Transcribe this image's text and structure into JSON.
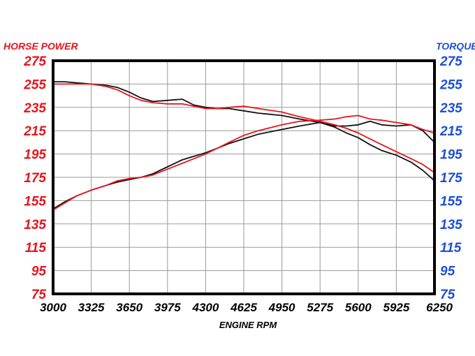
{
  "chart_data": {
    "type": "line",
    "title": "",
    "xlabel": "ENGINE RPM",
    "ylabel_left": "HORSE POWER",
    "ylabel_right": "TORQUE",
    "xlim": [
      3000,
      6250
    ],
    "ylim_left": [
      75,
      275
    ],
    "ylim_right": [
      75,
      275
    ],
    "x_ticks": [
      "3000",
      "3325",
      "3650",
      "3975",
      "4300",
      "4625",
      "4950",
      "5275",
      "5600",
      "5925",
      "6250"
    ],
    "y_ticks_left": [
      "275",
      "255",
      "235",
      "215",
      "195",
      "175",
      "155",
      "135",
      "115",
      "95",
      "75"
    ],
    "y_ticks_right": [
      "275",
      "255",
      "235",
      "215",
      "195",
      "175",
      "155",
      "135",
      "115",
      "95",
      "75"
    ],
    "grid": true,
    "colors": {
      "left_axis": "#e8141c",
      "right_axis": "#1e4fd6",
      "black_series": "#111111",
      "red_series": "#e8141c",
      "grid": "#9a9a9a"
    },
    "series": [
      {
        "color": "black",
        "kind": "torque",
        "x": [
          3000,
          3100,
          3200,
          3325,
          3450,
          3550,
          3650,
          3750,
          3850,
          3975,
          4100,
          4200,
          4300,
          4400,
          4500,
          4625,
          4750,
          4950,
          5100,
          5275,
          5400,
          5500,
          5600,
          5700,
          5800,
          5925,
          6050,
          6150,
          6250
        ],
        "y": [
          257,
          257,
          256,
          255,
          254,
          252,
          248,
          243,
          240,
          241,
          242,
          237,
          235,
          234,
          234,
          232,
          230,
          228,
          225,
          222,
          219,
          219,
          220,
          223,
          220,
          219,
          220,
          215,
          205
        ]
      },
      {
        "color": "red",
        "kind": "torque",
        "x": [
          3000,
          3100,
          3200,
          3325,
          3450,
          3550,
          3650,
          3750,
          3850,
          3975,
          4100,
          4200,
          4300,
          4400,
          4500,
          4625,
          4750,
          4950,
          5100,
          5275,
          5400,
          5500,
          5600,
          5700,
          5800,
          5925,
          6050,
          6150,
          6250
        ],
        "y": [
          255,
          255,
          255,
          255,
          253,
          250,
          245,
          241,
          239,
          238,
          238,
          236,
          234,
          234,
          235,
          236,
          234,
          231,
          227,
          223,
          220,
          217,
          213,
          208,
          203,
          197,
          191,
          186,
          179
        ]
      },
      {
        "color": "black",
        "kind": "horsepower",
        "x": [
          3000,
          3100,
          3200,
          3325,
          3450,
          3550,
          3650,
          3750,
          3850,
          3975,
          4100,
          4200,
          4300,
          4400,
          4500,
          4625,
          4750,
          4950,
          5100,
          5275,
          5400,
          5500,
          5600,
          5700,
          5800,
          5925,
          6050,
          6150,
          6250
        ],
        "y": [
          148,
          154,
          159,
          164,
          168,
          171,
          173,
          175,
          178,
          184,
          190,
          193,
          196,
          200,
          204,
          208,
          212,
          216,
          219,
          222,
          218,
          213,
          209,
          203,
          198,
          194,
          188,
          181,
          172
        ]
      },
      {
        "color": "red",
        "kind": "horsepower",
        "x": [
          3000,
          3100,
          3200,
          3325,
          3450,
          3550,
          3650,
          3750,
          3850,
          3975,
          4100,
          4200,
          4300,
          4400,
          4500,
          4625,
          4750,
          4950,
          5100,
          5275,
          5400,
          5500,
          5600,
          5700,
          5800,
          5925,
          6050,
          6150,
          6250
        ],
        "y": [
          147,
          153,
          159,
          164,
          168,
          172,
          174,
          175,
          177,
          182,
          187,
          191,
          195,
          200,
          205,
          211,
          215,
          220,
          223,
          224,
          225,
          227,
          228,
          225,
          224,
          222,
          220,
          216,
          213
        ]
      }
    ]
  }
}
